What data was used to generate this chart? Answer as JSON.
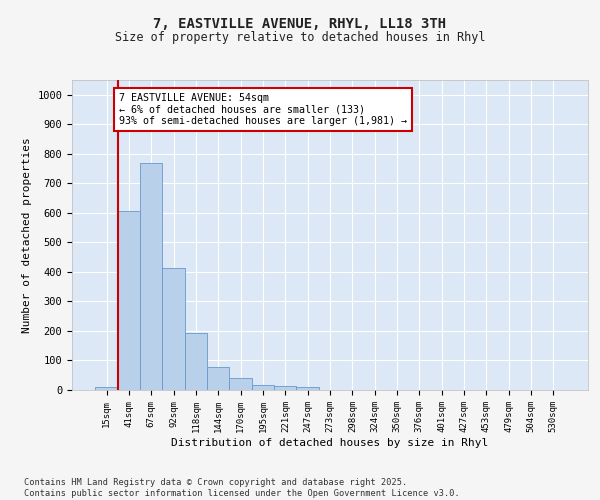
{
  "title_line1": "7, EASTVILLE AVENUE, RHYL, LL18 3TH",
  "title_line2": "Size of property relative to detached houses in Rhyl",
  "xlabel": "Distribution of detached houses by size in Rhyl",
  "ylabel": "Number of detached properties",
  "categories": [
    "15sqm",
    "41sqm",
    "67sqm",
    "92sqm",
    "118sqm",
    "144sqm",
    "170sqm",
    "195sqm",
    "221sqm",
    "247sqm",
    "273sqm",
    "298sqm",
    "324sqm",
    "350sqm",
    "376sqm",
    "401sqm",
    "427sqm",
    "453sqm",
    "479sqm",
    "504sqm",
    "530sqm"
  ],
  "values": [
    10,
    607,
    770,
    413,
    192,
    78,
    40,
    16,
    14,
    10,
    0,
    0,
    0,
    0,
    0,
    0,
    0,
    0,
    0,
    0,
    0
  ],
  "bar_color": "#b8d0ea",
  "bar_edge_color": "#6699cc",
  "vline_color": "#cc0000",
  "vline_x": 0.5,
  "annotation_text": "7 EASTVILLE AVENUE: 54sqm\n← 6% of detached houses are smaller (133)\n93% of semi-detached houses are larger (1,981) →",
  "annotation_box_color": "#ffffff",
  "annotation_box_edge": "#cc0000",
  "ylim": [
    0,
    1050
  ],
  "yticks": [
    0,
    100,
    200,
    300,
    400,
    500,
    600,
    700,
    800,
    900,
    1000
  ],
  "plot_bg_color": "#dce8f5",
  "fig_bg_color": "#f5f5f5",
  "grid_color": "#ffffff",
  "footer_line1": "Contains HM Land Registry data © Crown copyright and database right 2025.",
  "footer_line2": "Contains public sector information licensed under the Open Government Licence v3.0."
}
